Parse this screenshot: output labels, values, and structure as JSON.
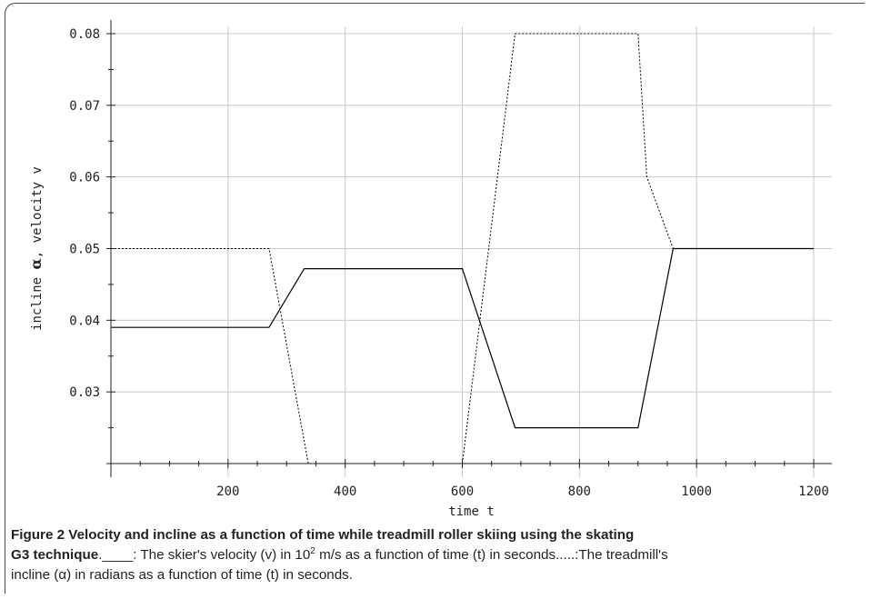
{
  "chart_data": {
    "type": "line",
    "xlabel": "time t",
    "ylabel_prefix": "incline ",
    "ylabel_alpha": "α",
    "ylabel_suffix": ", velocity v",
    "xlim": [
      0,
      1200
    ],
    "ylim": [
      0.02,
      0.08
    ],
    "xticks": [
      200,
      400,
      600,
      800,
      1000,
      1200
    ],
    "yticks": [
      0.03,
      0.04,
      0.05,
      0.06,
      0.07,
      0.08
    ],
    "ytick_labels": [
      "0.03",
      "0.04",
      "0.05",
      "0.06",
      "0.07",
      "0.08"
    ],
    "grid": true,
    "series": [
      {
        "style": "solid",
        "x": [
          0,
          270,
          330,
          600,
          690,
          900,
          960,
          1200
        ],
        "y": [
          0.039,
          0.039,
          0.0472,
          0.0472,
          0.025,
          0.025,
          0.05,
          0.05
        ]
      },
      {
        "style": "dotted",
        "x": [
          0,
          270,
          337,
          600,
          690,
          900,
          915,
          960
        ],
        "y": [
          0.05,
          0.05,
          0.02,
          0.02,
          0.08,
          0.08,
          0.06,
          0.05
        ]
      }
    ],
    "colors": {
      "line": "#000000",
      "grid": "#c8c8c8",
      "axis": "#222222"
    }
  },
  "caption": {
    "figure_label": "Figure 2",
    "title_line1": " Velocity and incline as a function of time while treadmill roller skiing using the skating",
    "title_line2": "G3 technique",
    "legend_solid_marker": ".____",
    "solid_desc_pre": ": The skier's velocity (v) in 10",
    "solid_desc_sup": "2",
    "solid_desc_post": " m/s as a function of time (t) in seconds.",
    "dotted_marker": "....",
    "dotted_desc": ":The treadmill's",
    "dotted_desc_line2": "incline (α) in radians as a function of time (t) in seconds."
  }
}
